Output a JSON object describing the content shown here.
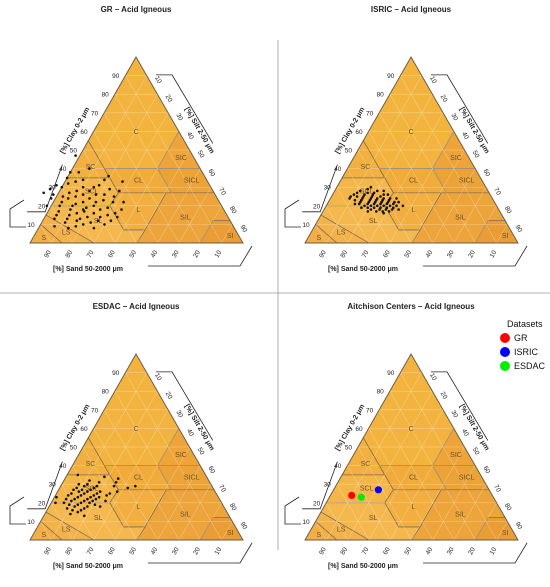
{
  "chart_data": [
    {
      "type": "scatter",
      "title": "GR – Acid Igneous",
      "clay_axis_label": "[%] Clay 0-2 μm",
      "silt_axis_label": "[%] Silt 2-50 μm",
      "sand_axis_label": "[%] Sand 50-2000 μm",
      "ticks": [
        10,
        20,
        30,
        40,
        50,
        60,
        70,
        80,
        90
      ],
      "classes": [
        "C",
        "SIC",
        "SC",
        "CL",
        "SICL",
        "SCL",
        "L",
        "SIL",
        "SL",
        "LS",
        "S",
        "SI"
      ],
      "points_clay_sand": [
        [
          47,
          55
        ],
        [
          40,
          52
        ],
        [
          38,
          58
        ],
        [
          38,
          62
        ],
        [
          36,
          45
        ],
        [
          34,
          48
        ],
        [
          34,
          58
        ],
        [
          33,
          62
        ],
        [
          32,
          66
        ],
        [
          31,
          52
        ],
        [
          30,
          55
        ],
        [
          30,
          60
        ],
        [
          30,
          70
        ],
        [
          29,
          48
        ],
        [
          28,
          58
        ],
        [
          28,
          64
        ],
        [
          27,
          68
        ],
        [
          26,
          52
        ],
        [
          26,
          56
        ],
        [
          26,
          62
        ],
        [
          25,
          48
        ],
        [
          25,
          66
        ],
        [
          25,
          72
        ],
        [
          24,
          60
        ],
        [
          24,
          70
        ],
        [
          23,
          54
        ],
        [
          22,
          50
        ],
        [
          22,
          58
        ],
        [
          22,
          64
        ],
        [
          22,
          74
        ],
        [
          21,
          68
        ],
        [
          20,
          60
        ],
        [
          20,
          70
        ],
        [
          20,
          76
        ],
        [
          19,
          54
        ],
        [
          19,
          64
        ],
        [
          18,
          48
        ],
        [
          18,
          58
        ],
        [
          18,
          72
        ],
        [
          17,
          66
        ],
        [
          17,
          78
        ],
        [
          16,
          52
        ],
        [
          16,
          62
        ],
        [
          16,
          70
        ],
        [
          15,
          56
        ],
        [
          15,
          74
        ],
        [
          15,
          80
        ],
        [
          14,
          60
        ],
        [
          14,
          66
        ],
        [
          13,
          70
        ],
        [
          13,
          76
        ],
        [
          13,
          82
        ],
        [
          12,
          56
        ],
        [
          12,
          62
        ],
        [
          12,
          72
        ],
        [
          11,
          66
        ],
        [
          11,
          78
        ],
        [
          10,
          70
        ],
        [
          10,
          60
        ],
        [
          9,
          74
        ],
        [
          9,
          84
        ],
        [
          8,
          66
        ],
        [
          8,
          78
        ],
        [
          27,
          80
        ],
        [
          29,
          76
        ],
        [
          24,
          78
        ],
        [
          20,
          82
        ],
        [
          31,
          72
        ],
        [
          35,
          65
        ],
        [
          22,
          45
        ],
        [
          28,
          44
        ],
        [
          33,
          40
        ],
        [
          18,
          66
        ],
        [
          14,
          52
        ],
        [
          26,
          76
        ]
      ]
    },
    {
      "type": "scatter",
      "title": "ISRIC – Acid Igneous",
      "clay_axis_label": "[%] Clay 0-2 μm",
      "silt_axis_label": "[%] Silt 2-50 μm",
      "sand_axis_label": "[%] Sand 50-2000 μm",
      "ticks": [
        10,
        20,
        30,
        40,
        50,
        60,
        70,
        80,
        90
      ],
      "classes": [
        "C",
        "SIC",
        "SC",
        "CL",
        "SICL",
        "SCL",
        "L",
        "SIL",
        "SL",
        "LS",
        "S",
        "SI"
      ],
      "points_clay_sand": [
        [
          28,
          52
        ],
        [
          27,
          54
        ],
        [
          27,
          57
        ],
        [
          26,
          50
        ],
        [
          26,
          55
        ],
        [
          26,
          59
        ],
        [
          25,
          52
        ],
        [
          25,
          56
        ],
        [
          25,
          60
        ],
        [
          25,
          63
        ],
        [
          24,
          48
        ],
        [
          24,
          51
        ],
        [
          24,
          54
        ],
        [
          24,
          57
        ],
        [
          24,
          61
        ],
        [
          23,
          49
        ],
        [
          23,
          52
        ],
        [
          23,
          55
        ],
        [
          23,
          58
        ],
        [
          23,
          62
        ],
        [
          22,
          47
        ],
        [
          22,
          50
        ],
        [
          22,
          53
        ],
        [
          22,
          56
        ],
        [
          22,
          59
        ],
        [
          22,
          63
        ],
        [
          21,
          48
        ],
        [
          21,
          51
        ],
        [
          21,
          54
        ],
        [
          21,
          57
        ],
        [
          21,
          60
        ],
        [
          21,
          64
        ],
        [
          20,
          47
        ],
        [
          20,
          50
        ],
        [
          20,
          53
        ],
        [
          20,
          56
        ],
        [
          20,
          59
        ],
        [
          20,
          62
        ],
        [
          19,
          49
        ],
        [
          19,
          52
        ],
        [
          19,
          55
        ],
        [
          19,
          58
        ],
        [
          19,
          61
        ],
        [
          18,
          50
        ],
        [
          18,
          53
        ],
        [
          18,
          56
        ],
        [
          18,
          60
        ],
        [
          17,
          52
        ],
        [
          17,
          55
        ],
        [
          17,
          58
        ],
        [
          29,
          56
        ],
        [
          28,
          60
        ],
        [
          26,
          48
        ],
        [
          24,
          45
        ],
        [
          27,
          62
        ],
        [
          23,
          65
        ],
        [
          20,
          44
        ],
        [
          18,
          47
        ],
        [
          16,
          55
        ],
        [
          25,
          66
        ],
        [
          30,
          54
        ],
        [
          28,
          49
        ],
        [
          22,
          45
        ],
        [
          26,
          64
        ],
        [
          19,
          64
        ],
        [
          21,
          66
        ],
        [
          17,
          62
        ],
        [
          24,
          67
        ]
      ]
    },
    {
      "type": "scatter",
      "title": "ESDAC – Acid Igneous",
      "clay_axis_label": "[%] Clay 0-2 μm",
      "silt_axis_label": "[%] Silt 2-50 μm",
      "sand_axis_label": "[%] Sand 50-2000 μm",
      "ticks": [
        10,
        20,
        30,
        40,
        50,
        60,
        70,
        80,
        90
      ],
      "classes": [
        "C",
        "SIC",
        "SC",
        "CL",
        "SICL",
        "SCL",
        "L",
        "SIL",
        "SL",
        "LS",
        "S",
        "SI"
      ],
      "points_clay_sand": [
        [
          32,
          56
        ],
        [
          31,
          52
        ],
        [
          30,
          58
        ],
        [
          30,
          62
        ],
        [
          29,
          54
        ],
        [
          29,
          60
        ],
        [
          28,
          56
        ],
        [
          28,
          64
        ],
        [
          27,
          58
        ],
        [
          27,
          62
        ],
        [
          27,
          66
        ],
        [
          26,
          54
        ],
        [
          26,
          60
        ],
        [
          26,
          64
        ],
        [
          25,
          56
        ],
        [
          25,
          62
        ],
        [
          25,
          68
        ],
        [
          24,
          58
        ],
        [
          24,
          64
        ],
        [
          24,
          70
        ],
        [
          23,
          56
        ],
        [
          23,
          60
        ],
        [
          23,
          66
        ],
        [
          22,
          58
        ],
        [
          22,
          62
        ],
        [
          22,
          68
        ],
        [
          22,
          72
        ],
        [
          21,
          60
        ],
        [
          21,
          64
        ],
        [
          21,
          70
        ],
        [
          20,
          62
        ],
        [
          20,
          66
        ],
        [
          20,
          74
        ],
        [
          19,
          60
        ],
        [
          19,
          68
        ],
        [
          19,
          72
        ],
        [
          18,
          64
        ],
        [
          18,
          70
        ],
        [
          17,
          66
        ],
        [
          17,
          74
        ],
        [
          16,
          68
        ],
        [
          16,
          72
        ],
        [
          15,
          70
        ],
        [
          14,
          74
        ],
        [
          13,
          68
        ],
        [
          34,
          48
        ],
        [
          33,
          42
        ],
        [
          31,
          44
        ],
        [
          29,
          46
        ],
        [
          28,
          40
        ],
        [
          26,
          46
        ],
        [
          35,
          60
        ],
        [
          24,
          52
        ],
        [
          23,
          76
        ],
        [
          20,
          78
        ],
        [
          18,
          58
        ],
        [
          29,
          36
        ],
        [
          25,
          50
        ],
        [
          21,
          54
        ]
      ]
    },
    {
      "type": "scatter",
      "title": "Aitchison Centers – Acid Igneous",
      "clay_axis_label": "[%] Clay 0-2 μm",
      "silt_axis_label": "[%] Silt 2-50 μm",
      "sand_axis_label": "[%] Sand 50-2000 μm",
      "ticks": [
        10,
        20,
        30,
        40,
        50,
        60,
        70,
        80,
        90
      ],
      "classes": [
        "C",
        "SIC",
        "SC",
        "CL",
        "SICL",
        "SCL",
        "L",
        "SIL",
        "SL",
        "LS",
        "S",
        "SI"
      ],
      "legend_title": "Datasets",
      "legend_position": "top-right",
      "series": [
        {
          "name": "GR",
          "color": "#ff0000",
          "clay": 24,
          "sand": 66
        },
        {
          "name": "ISRIC",
          "color": "#0000ff",
          "clay": 27,
          "sand": 52
        },
        {
          "name": "ESDAC",
          "color": "#00ee00",
          "clay": 23,
          "sand": 62
        }
      ]
    }
  ]
}
